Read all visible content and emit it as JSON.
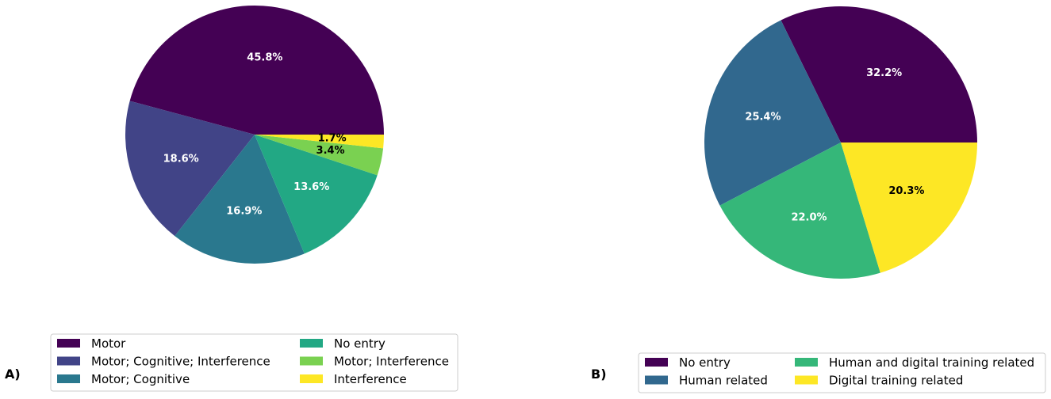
{
  "chart_data": [
    {
      "type": "pie",
      "panel_label": "A)",
      "start_angle_deg": 0,
      "direction": "counterclockwise",
      "legend_placement": "bottom",
      "categories": [
        "Motor",
        "Motor; Cognitive; Interference",
        "Motor; Cognitive",
        "No entry",
        "Motor; Interference",
        "Interference"
      ],
      "values": [
        45.8,
        18.6,
        16.9,
        13.6,
        3.4,
        1.7
      ],
      "labels": [
        "45.8%",
        "18.6%",
        "16.9%",
        "13.6%",
        "3.4%",
        "1.7%"
      ],
      "colors": [
        "#440154",
        "#414487",
        "#2a788e",
        "#22a884",
        "#7ad151",
        "#fde725"
      ],
      "label_colors": [
        "#ffffff",
        "#ffffff",
        "#ffffff",
        "#ffffff",
        "#000000",
        "#000000"
      ]
    },
    {
      "type": "pie",
      "panel_label": "B)",
      "start_angle_deg": 0,
      "direction": "counterclockwise",
      "legend_placement": "bottom",
      "categories": [
        "No entry",
        "Human related",
        "Human and digital training related",
        "Digital training related"
      ],
      "values": [
        32.2,
        25.4,
        22.0,
        20.3
      ],
      "labels": [
        "32.2%",
        "25.4%",
        "22.0%",
        "20.3%"
      ],
      "colors": [
        "#440154",
        "#31688e",
        "#35b779",
        "#fde725"
      ],
      "label_colors": [
        "#ffffff",
        "#ffffff",
        "#ffffff",
        "#000000"
      ]
    }
  ]
}
